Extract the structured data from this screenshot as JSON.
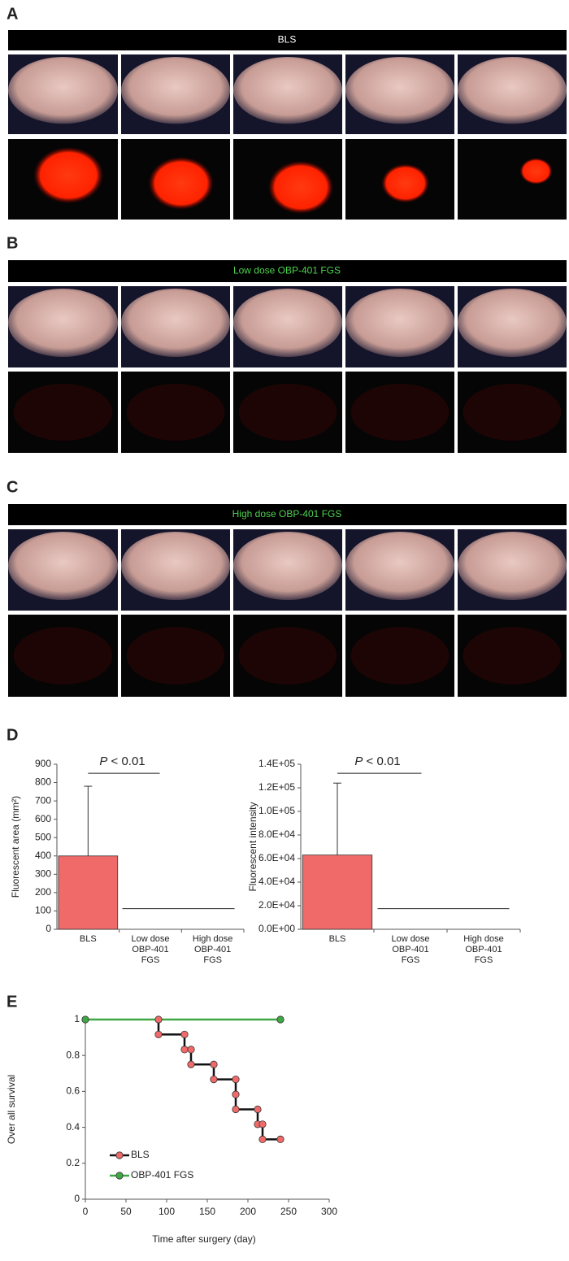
{
  "panels": [
    {
      "label": "A",
      "header": "BLS",
      "header_color": "#ffffff"
    },
    {
      "label": "B",
      "header": "Low dose OBP-401 FGS",
      "header_color": "#4fd24f"
    },
    {
      "label": "C",
      "header": "High dose OBP-401 FGS",
      "header_color": "#4fd24f"
    }
  ],
  "chart_data": [
    {
      "type": "bar",
      "panel": "D",
      "ylabel": "Fluorescent area (mm²)",
      "categories": [
        "BLS",
        "Low dose OBP-401 FGS",
        "High dose OBP-401 FGS"
      ],
      "values": [
        400,
        0,
        0
      ],
      "error": [
        380,
        null,
        null
      ],
      "color": "#f06a6a",
      "ylim": [
        0,
        900
      ],
      "yticks": [
        0,
        100,
        200,
        300,
        400,
        500,
        600,
        700,
        800,
        900
      ],
      "annotation": {
        "italic": "P",
        "text": " < 0.01"
      }
    },
    {
      "type": "bar",
      "ylabel": "Fluorescent intensity",
      "categories": [
        "BLS",
        "Low dose OBP-401 FGS",
        "High dose OBP-401 FGS"
      ],
      "values": [
        63000,
        0,
        0
      ],
      "error": [
        61000,
        null,
        null
      ],
      "color": "#f06a6a",
      "ylim": [
        0,
        140000
      ],
      "yticks": [
        {
          "value": 0,
          "label": "0.0E+00"
        },
        {
          "value": 20000,
          "label": "2.0E+04"
        },
        {
          "value": 40000,
          "label": "4.0E+04"
        },
        {
          "value": 60000,
          "label": "6.0E+04"
        },
        {
          "value": 80000,
          "label": "8.0E+04"
        },
        {
          "value": 100000,
          "label": "1.0E+05"
        },
        {
          "value": 120000,
          "label": "1.2E+05"
        },
        {
          "value": 140000,
          "label": "1.4E+05"
        }
      ],
      "annotation": {
        "italic": "P",
        "text": " < 0.01"
      }
    },
    {
      "type": "line",
      "panel": "E",
      "xlabel": "Time after surgery (day)",
      "ylabel": "Over all survival",
      "series": [
        {
          "name": "BLS",
          "color": "#f06a6a",
          "x": [
            90,
            90,
            122,
            122,
            130,
            130,
            158,
            158,
            185,
            185,
            185,
            212,
            212,
            218,
            218,
            240
          ],
          "values": [
            1,
            0.917,
            0.917,
            0.833,
            0.833,
            0.75,
            0.75,
            0.667,
            0.667,
            0.583,
            0.5,
            0.5,
            0.417,
            0.417,
            0.333,
            0.333
          ]
        },
        {
          "name": "OBP-401 FGS",
          "color": "#3fa845",
          "x": [
            0,
            240
          ],
          "values": [
            1,
            1
          ]
        }
      ],
      "xlim": [
        0,
        300
      ],
      "xticks": [
        0,
        50,
        100,
        150,
        200,
        250,
        300
      ],
      "ylim": [
        0,
        1
      ],
      "yticks": [
        0,
        0.2,
        0.4,
        0.6,
        0.8,
        1
      ],
      "legend": "lower left"
    }
  ]
}
